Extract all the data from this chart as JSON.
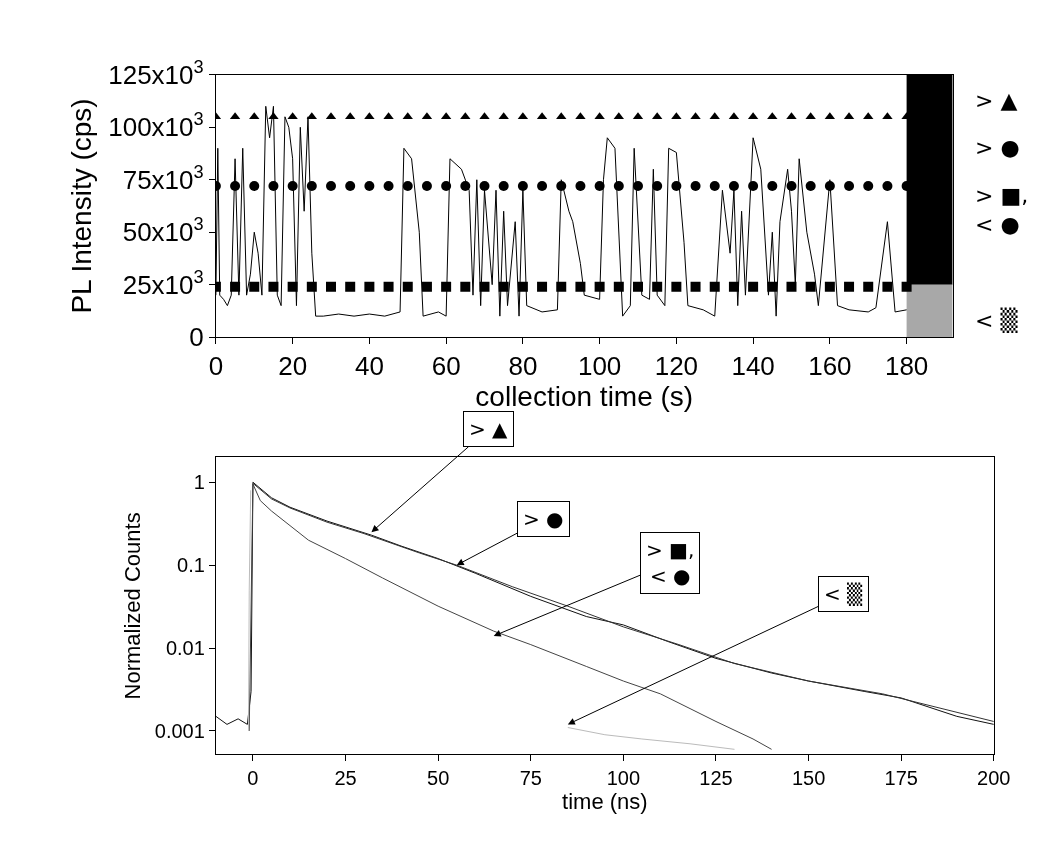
{
  "chart_data": [
    {
      "type": "line",
      "xlabel": "collection time (s)",
      "ylabel": "PL Intensity (cps)",
      "xlim": [
        0,
        192
      ],
      "xticks": [
        0,
        20,
        40,
        60,
        80,
        100,
        120,
        140,
        160,
        180
      ],
      "ylim": [
        0,
        125000
      ],
      "yticks": [
        {
          "value": 0,
          "label": "0"
        },
        {
          "value": 25000,
          "label": "25x10$^{3}$"
        },
        {
          "value": 50000,
          "label": "50x10$^{3}$"
        },
        {
          "value": 75000,
          "label": "75x10$^{3}$"
        },
        {
          "value": 100000,
          "label": "100x10$^{3}$"
        },
        {
          "value": 125000,
          "label": "125x10$^{3}$"
        }
      ],
      "series": [
        {
          "color": "#000000",
          "x": [
            0,
            0.5,
            1,
            2,
            3,
            4,
            5,
            6,
            7,
            8,
            9,
            10,
            11,
            12,
            13,
            14,
            15,
            16,
            17,
            18,
            19,
            20,
            21,
            22,
            23,
            24,
            25,
            26,
            28,
            32,
            36,
            40,
            44,
            48,
            49,
            51,
            53,
            54,
            58,
            60,
            61,
            64,
            66,
            67,
            68,
            69,
            70,
            72,
            73,
            74,
            75,
            76,
            78,
            79,
            80,
            81,
            85,
            89,
            90,
            92,
            93,
            95,
            96,
            100,
            101,
            102,
            104,
            106,
            108,
            109,
            111,
            113,
            114,
            115,
            117,
            118,
            120,
            122,
            123,
            127,
            130,
            132,
            134,
            135,
            136,
            137,
            138,
            140,
            142,
            144,
            145,
            146,
            147,
            149,
            150,
            151,
            152,
            154,
            156,
            157,
            160,
            162,
            165,
            170,
            172,
            175,
            177,
            180
          ],
          "values": [
            20000,
            90000,
            20000,
            18000,
            15000,
            20000,
            85000,
            20000,
            90000,
            20000,
            30000,
            50000,
            40000,
            20000,
            110000,
            95000,
            110000,
            20000,
            15000,
            105000,
            100000,
            85000,
            15000,
            100000,
            60000,
            105000,
            40000,
            10000,
            10000,
            11000,
            10000,
            11000,
            10000,
            12000,
            90000,
            85000,
            50000,
            10000,
            12000,
            10000,
            85000,
            80000,
            70000,
            20000,
            75000,
            15000,
            70000,
            25000,
            70000,
            10000,
            60000,
            15000,
            55000,
            10000,
            70000,
            15000,
            12000,
            13000,
            75000,
            60000,
            55000,
            35000,
            20000,
            18000,
            75000,
            95000,
            90000,
            10000,
            15000,
            90000,
            20000,
            18000,
            80000,
            20000,
            15000,
            90000,
            88000,
            45000,
            15000,
            13000,
            10000,
            70000,
            40000,
            70000,
            15000,
            60000,
            20000,
            95000,
            80000,
            20000,
            50000,
            10000,
            55000,
            80000,
            60000,
            25000,
            85000,
            50000,
            30000,
            15000,
            75000,
            15000,
            13000,
            12000,
            14000,
            55000,
            12000,
            13000
          ]
        },
        {
          "type": "scatter",
          "marker": "triangle",
          "color": "#000000",
          "x": [
            0,
            5,
            10,
            15,
            20,
            25,
            30,
            35,
            40,
            45,
            50,
            55,
            60,
            65,
            70,
            75,
            80,
            85,
            90,
            95,
            100,
            105,
            110,
            115,
            120,
            125,
            130,
            135,
            140,
            145,
            150,
            155,
            160,
            165,
            170,
            175,
            180
          ],
          "values": [
            105000,
            105000,
            105000,
            105000,
            105000,
            105000,
            105000,
            105000,
            105000,
            105000,
            105000,
            105000,
            105000,
            105000,
            105000,
            105000,
            105000,
            105000,
            105000,
            105000,
            105000,
            105000,
            105000,
            105000,
            105000,
            105000,
            105000,
            105000,
            105000,
            105000,
            105000,
            105000,
            105000,
            105000,
            105000,
            105000,
            105000
          ]
        },
        {
          "type": "scatter",
          "marker": "circle",
          "color": "#000000",
          "x": [
            0,
            5,
            10,
            15,
            20,
            25,
            30,
            35,
            40,
            45,
            50,
            55,
            60,
            65,
            70,
            75,
            80,
            85,
            90,
            95,
            100,
            105,
            110,
            115,
            120,
            125,
            130,
            135,
            140,
            145,
            150,
            155,
            160,
            165,
            170,
            175,
            180
          ],
          "values": [
            72000,
            72000,
            72000,
            72000,
            72000,
            72000,
            72000,
            72000,
            72000,
            72000,
            72000,
            72000,
            72000,
            72000,
            72000,
            72000,
            72000,
            72000,
            72000,
            72000,
            72000,
            72000,
            72000,
            72000,
            72000,
            72000,
            72000,
            72000,
            72000,
            72000,
            72000,
            72000,
            72000,
            72000,
            72000,
            72000,
            72000
          ]
        },
        {
          "type": "scatter",
          "marker": "square",
          "color": "#000000",
          "x": [
            0,
            5,
            10,
            15,
            20,
            25,
            30,
            35,
            40,
            45,
            50,
            55,
            60,
            65,
            70,
            75,
            80,
            85,
            90,
            95,
            100,
            105,
            110,
            115,
            120,
            125,
            130,
            135,
            140,
            145,
            150,
            155,
            160,
            165,
            170,
            175,
            180
          ],
          "values": [
            24000,
            24000,
            24000,
            24000,
            24000,
            24000,
            24000,
            24000,
            24000,
            24000,
            24000,
            24000,
            24000,
            24000,
            24000,
            24000,
            24000,
            24000,
            24000,
            24000,
            24000,
            24000,
            24000,
            24000,
            24000,
            24000,
            24000,
            24000,
            24000,
            24000,
            24000,
            24000,
            24000,
            24000,
            24000,
            24000,
            24000
          ]
        }
      ],
      "bands": [
        {
          "axis": "y",
          "from": 25000,
          "to": 125000,
          "color": "#000000"
        },
        {
          "axis": "y",
          "from": 0,
          "to": 25000,
          "color": "#a8a8a8"
        }
      ],
      "annotations": [
        "> ▲",
        "> ●",
        "> ■,\n< ●",
        "< ▒"
      ]
    },
    {
      "type": "line",
      "xlabel": "time (ns)",
      "ylabel": "Normalized Counts",
      "log": "y",
      "xlim": [
        -10,
        200
      ],
      "xticks": [
        0,
        25,
        50,
        75,
        100,
        125,
        150,
        175,
        200
      ],
      "ylim": [
        0.00052,
        2
      ],
      "yticks": [
        1,
        0.1,
        0.01,
        0.001
      ],
      "series": [
        {
          "color": "#111111",
          "x": [
            -10,
            -7,
            -4,
            -1.5,
            -0.5,
            0,
            5,
            10,
            20,
            32,
            40,
            50,
            60,
            75,
            90,
            100,
            112,
            125,
            140,
            150,
            165,
            175,
            190,
            200
          ],
          "values": [
            0.0015,
            0.0012,
            0.0014,
            0.0012,
            0.003,
            1,
            0.65,
            0.5,
            0.34,
            0.23,
            0.17,
            0.12,
            0.08,
            0.042,
            0.024,
            0.019,
            0.012,
            0.0075,
            0.005,
            0.004,
            0.003,
            0.0025,
            0.0015,
            0.0012
          ]
        },
        {
          "color": "#333333",
          "x": [
            0,
            5,
            10,
            20,
            30,
            45,
            55,
            70,
            85,
            100,
            115,
            130,
            150,
            170,
            200
          ],
          "values": [
            0.97,
            0.63,
            0.49,
            0.33,
            0.24,
            0.14,
            0.1,
            0.055,
            0.032,
            0.018,
            0.011,
            0.0065,
            0.004,
            0.0028,
            0.0013
          ]
        },
        {
          "color": "#444444",
          "x": [
            -1,
            0,
            2,
            5,
            10,
            15,
            25,
            35,
            50,
            65,
            75,
            90,
            100,
            110,
            125,
            135,
            140
          ],
          "values": [
            0.001,
            0.95,
            0.6,
            0.45,
            0.3,
            0.2,
            0.12,
            0.07,
            0.032,
            0.016,
            0.011,
            0.006,
            0.004,
            0.0028,
            0.0013,
            0.0008,
            0.0006
          ]
        },
        {
          "color": "#bbbbbb",
          "x": [
            -1.2,
            -1,
            -0.6,
            40,
            85,
            95,
            105,
            118,
            130
          ],
          "values": [
            0.001,
            0.05,
            0.8,
            null,
            0.0011,
            0.0009,
            0.0008,
            0.0007,
            0.0006
          ]
        }
      ],
      "annotations": [
        {
          "text": "> ▲",
          "x": 32,
          "y": 0.25
        },
        {
          "text": "> ●",
          "x": 55,
          "y": 0.1
        },
        {
          "text": "> ■,\n< ●",
          "x": 65,
          "y": 0.014
        },
        {
          "text": "< ▒",
          "x": 85,
          "y": 0.0012
        }
      ]
    }
  ]
}
